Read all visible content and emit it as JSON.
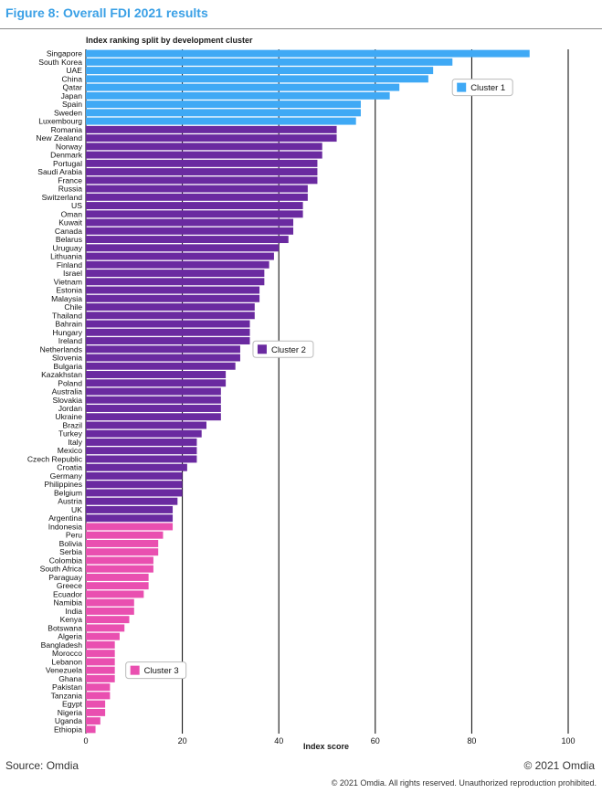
{
  "figure_title": "Figure 8: Overall FDI 2021 results",
  "source": "Source: Omdia",
  "copyright_short": "© 2021 Omdia",
  "copyright_long": "© 2021 Omdia. All rights reserved. Unauthorized reproduction prohibited.",
  "colors": {
    "cluster1": "#3fa9f5",
    "cluster2": "#6a2aa0",
    "cluster3": "#e94fb0",
    "title": "#3aa0e6"
  },
  "chart_data": {
    "type": "bar",
    "orientation": "horizontal",
    "subtitle": "Index ranking split by development cluster",
    "xlabel": "Index score",
    "xlim": [
      0,
      100
    ],
    "xticks": [
      0,
      20,
      40,
      60,
      80,
      100
    ],
    "grid": true,
    "legend": [
      {
        "name": "Cluster 1",
        "cluster": 1
      },
      {
        "name": "Cluster 2",
        "cluster": 2
      },
      {
        "name": "Cluster 3",
        "cluster": 3
      }
    ],
    "bars": [
      {
        "country": "Singapore",
        "value": 92,
        "cluster": 1
      },
      {
        "country": "South Korea",
        "value": 76,
        "cluster": 1
      },
      {
        "country": "UAE",
        "value": 72,
        "cluster": 1
      },
      {
        "country": "China",
        "value": 71,
        "cluster": 1
      },
      {
        "country": "Qatar",
        "value": 65,
        "cluster": 1
      },
      {
        "country": "Japan",
        "value": 63,
        "cluster": 1
      },
      {
        "country": "Spain",
        "value": 57,
        "cluster": 1
      },
      {
        "country": "Sweden",
        "value": 57,
        "cluster": 1
      },
      {
        "country": "Luxembourg",
        "value": 56,
        "cluster": 1
      },
      {
        "country": "Romania",
        "value": 52,
        "cluster": 2
      },
      {
        "country": "New Zealand",
        "value": 52,
        "cluster": 2
      },
      {
        "country": "Norway",
        "value": 49,
        "cluster": 2
      },
      {
        "country": "Denmark",
        "value": 49,
        "cluster": 2
      },
      {
        "country": "Portugal",
        "value": 48,
        "cluster": 2
      },
      {
        "country": "Saudi Arabia",
        "value": 48,
        "cluster": 2
      },
      {
        "country": "France",
        "value": 48,
        "cluster": 2
      },
      {
        "country": "Russia",
        "value": 46,
        "cluster": 2
      },
      {
        "country": "Switzerland",
        "value": 46,
        "cluster": 2
      },
      {
        "country": "US",
        "value": 45,
        "cluster": 2
      },
      {
        "country": "Oman",
        "value": 45,
        "cluster": 2
      },
      {
        "country": "Kuwait",
        "value": 43,
        "cluster": 2
      },
      {
        "country": "Canada",
        "value": 43,
        "cluster": 2
      },
      {
        "country": "Belarus",
        "value": 42,
        "cluster": 2
      },
      {
        "country": "Uruguay",
        "value": 40,
        "cluster": 2
      },
      {
        "country": "Lithuania",
        "value": 39,
        "cluster": 2
      },
      {
        "country": "Finland",
        "value": 38,
        "cluster": 2
      },
      {
        "country": "Israel",
        "value": 37,
        "cluster": 2
      },
      {
        "country": "Vietnam",
        "value": 37,
        "cluster": 2
      },
      {
        "country": "Estonia",
        "value": 36,
        "cluster": 2
      },
      {
        "country": "Malaysia",
        "value": 36,
        "cluster": 2
      },
      {
        "country": "Chile",
        "value": 35,
        "cluster": 2
      },
      {
        "country": "Thailand",
        "value": 35,
        "cluster": 2
      },
      {
        "country": "Bahrain",
        "value": 34,
        "cluster": 2
      },
      {
        "country": "Hungary",
        "value": 34,
        "cluster": 2
      },
      {
        "country": "Ireland",
        "value": 34,
        "cluster": 2
      },
      {
        "country": "Netherlands",
        "value": 32,
        "cluster": 2
      },
      {
        "country": "Slovenia",
        "value": 32,
        "cluster": 2
      },
      {
        "country": "Bulgaria",
        "value": 31,
        "cluster": 2
      },
      {
        "country": "Kazakhstan",
        "value": 29,
        "cluster": 2
      },
      {
        "country": "Poland",
        "value": 29,
        "cluster": 2
      },
      {
        "country": "Australia",
        "value": 28,
        "cluster": 2
      },
      {
        "country": "Slovakia",
        "value": 28,
        "cluster": 2
      },
      {
        "country": "Jordan",
        "value": 28,
        "cluster": 2
      },
      {
        "country": "Ukraine",
        "value": 28,
        "cluster": 2
      },
      {
        "country": "Brazil",
        "value": 25,
        "cluster": 2
      },
      {
        "country": "Turkey",
        "value": 24,
        "cluster": 2
      },
      {
        "country": "Italy",
        "value": 23,
        "cluster": 2
      },
      {
        "country": "Mexico",
        "value": 23,
        "cluster": 2
      },
      {
        "country": "Czech Republic",
        "value": 23,
        "cluster": 2
      },
      {
        "country": "Croatia",
        "value": 21,
        "cluster": 2
      },
      {
        "country": "Germany",
        "value": 20,
        "cluster": 2
      },
      {
        "country": "Philippines",
        "value": 20,
        "cluster": 2
      },
      {
        "country": "Belgium",
        "value": 20,
        "cluster": 2
      },
      {
        "country": "Austria",
        "value": 19,
        "cluster": 2
      },
      {
        "country": "UK",
        "value": 18,
        "cluster": 2
      },
      {
        "country": "Argentina",
        "value": 18,
        "cluster": 2
      },
      {
        "country": "Indonesia",
        "value": 18,
        "cluster": 3
      },
      {
        "country": "Peru",
        "value": 16,
        "cluster": 3
      },
      {
        "country": "Bolivia",
        "value": 15,
        "cluster": 3
      },
      {
        "country": "Serbia",
        "value": 15,
        "cluster": 3
      },
      {
        "country": "Colombia",
        "value": 14,
        "cluster": 3
      },
      {
        "country": "South Africa",
        "value": 14,
        "cluster": 3
      },
      {
        "country": "Paraguay",
        "value": 13,
        "cluster": 3
      },
      {
        "country": "Greece",
        "value": 13,
        "cluster": 3
      },
      {
        "country": "Ecuador",
        "value": 12,
        "cluster": 3
      },
      {
        "country": "Namibia",
        "value": 10,
        "cluster": 3
      },
      {
        "country": "India",
        "value": 10,
        "cluster": 3
      },
      {
        "country": "Kenya",
        "value": 9,
        "cluster": 3
      },
      {
        "country": "Botswana",
        "value": 8,
        "cluster": 3
      },
      {
        "country": "Algeria",
        "value": 7,
        "cluster": 3
      },
      {
        "country": "Bangladesh",
        "value": 6,
        "cluster": 3
      },
      {
        "country": "Morocco",
        "value": 6,
        "cluster": 3
      },
      {
        "country": "Lebanon",
        "value": 6,
        "cluster": 3
      },
      {
        "country": "Venezuela",
        "value": 6,
        "cluster": 3
      },
      {
        "country": "Ghana",
        "value": 6,
        "cluster": 3
      },
      {
        "country": "Pakistan",
        "value": 5,
        "cluster": 3
      },
      {
        "country": "Tanzania",
        "value": 5,
        "cluster": 3
      },
      {
        "country": "Egypt",
        "value": 4,
        "cluster": 3
      },
      {
        "country": "Nigeria",
        "value": 4,
        "cluster": 3
      },
      {
        "country": "Uganda",
        "value": 3,
        "cluster": 3
      },
      {
        "country": "Ethiopia",
        "value": 2,
        "cluster": 3
      }
    ]
  }
}
